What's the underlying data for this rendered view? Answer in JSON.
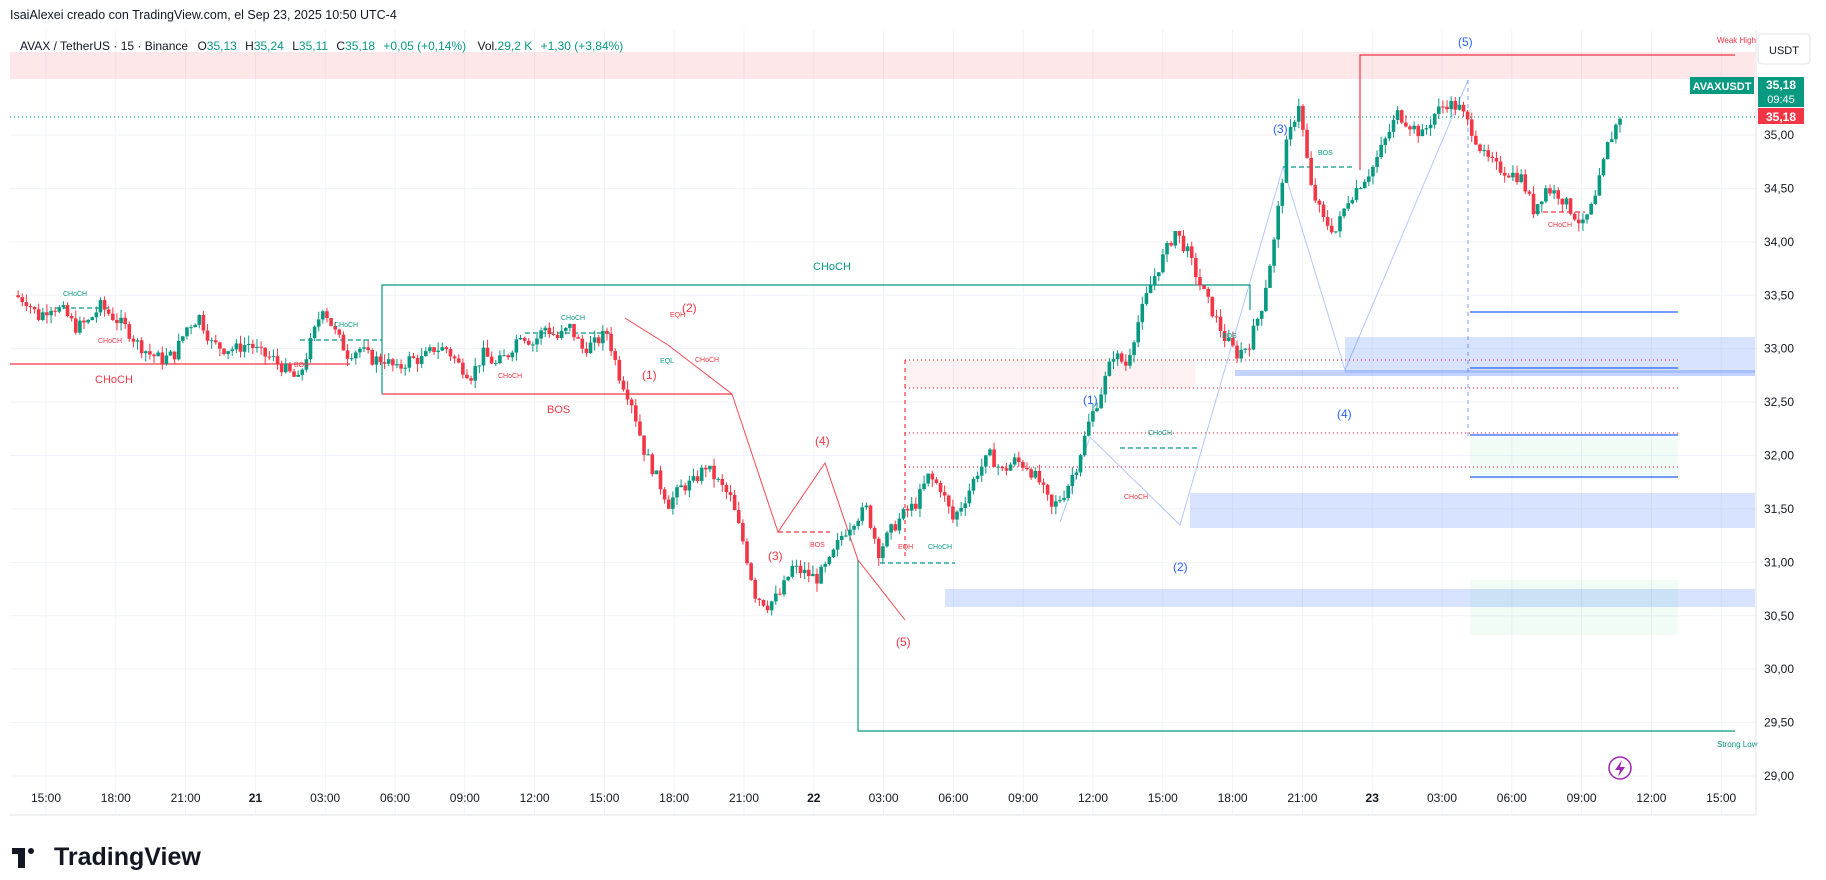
{
  "header": {
    "attribution": "IsaiAlexei creado con TradingView.com, el Sep 23, 2025 10:50 UTC-4"
  },
  "legend": {
    "symbol": "AVAX / TetherUS · 15 · Binance",
    "o_label": "O",
    "o_value": "35,13",
    "h_label": "H",
    "h_value": "35,24",
    "l_label": "L",
    "l_value": "35,11",
    "c_label": "C",
    "c_value": "35,18",
    "change": "+0,05 (+0,14%)",
    "vol_label": "Vol.",
    "vol_value": "29,2 K",
    "vol_change": "+1,30 (+3,84%)"
  },
  "price_scale": {
    "currency": "USDT",
    "symbol_badge": "AVAXUSDT",
    "last_price": "35,18",
    "countdown": "09:45",
    "last_price_red": "35,18"
  },
  "chart_data": {
    "type": "candlestick",
    "y_ticks": [
      "35,00",
      "34,50",
      "34,00",
      "33,50",
      "33,00",
      "32,50",
      "32,00",
      "31,50",
      "31,00",
      "30,50",
      "30,00",
      "29,50",
      "29,00"
    ],
    "x_ticks": [
      "15:00",
      "18:00",
      "21:00",
      "21",
      "03:00",
      "06:00",
      "09:00",
      "12:00",
      "15:00",
      "18:00",
      "21:00",
      "22",
      "03:00",
      "06:00",
      "09:00",
      "12:00",
      "15:00",
      "18:00",
      "21:00",
      "23",
      "03:00",
      "06:00",
      "09:00",
      "12:00",
      "15:00"
    ],
    "ylim": [
      29.0,
      35.6
    ],
    "key_prices": [
      {
        "label": "weak-high",
        "price": 35.37
      },
      {
        "label": "strong-low",
        "price": 29.4
      },
      {
        "label": "last",
        "price": 35.18
      }
    ],
    "annotations": {
      "weak_high": "Weak High",
      "strong_low": "Strong Low",
      "choch_main": "CHoCH",
      "choch_left": "CHoCH",
      "bos_left": "BOS",
      "bos_small": "BOS",
      "choch_small": "CHoCH",
      "eqh": "EQH",
      "eql": "EQL",
      "wave_red": [
        "(1)",
        "(2)",
        "(3)",
        "(4)",
        "(5)"
      ],
      "wave_blue": [
        "(1)",
        "(2)",
        "(3)",
        "(4)",
        "(5)"
      ]
    },
    "price_path": [
      [
        0,
        33.5
      ],
      [
        1,
        33.45
      ],
      [
        2,
        33.3
      ],
      [
        3,
        33.4
      ],
      [
        4,
        33.35
      ],
      [
        5,
        33.2
      ],
      [
        6,
        33.25
      ],
      [
        7,
        33.4
      ],
      [
        8,
        33.3
      ],
      [
        9,
        33.2
      ],
      [
        10,
        33.05
      ],
      [
        11,
        32.95
      ],
      [
        12,
        32.9
      ],
      [
        13,
        32.95
      ],
      [
        14,
        33.2
      ],
      [
        15,
        33.3
      ],
      [
        16,
        33.05
      ],
      [
        17,
        33.0
      ],
      [
        18,
        33.0
      ],
      [
        19,
        33.05
      ],
      [
        20,
        32.95
      ],
      [
        21,
        32.9
      ],
      [
        22,
        32.8
      ],
      [
        23,
        32.7
      ],
      [
        24,
        33.05
      ],
      [
        25,
        33.4
      ],
      [
        26,
        33.15
      ],
      [
        27,
        32.95
      ],
      [
        28,
        33.0
      ],
      [
        29,
        32.9
      ],
      [
        30,
        32.9
      ],
      [
        31,
        32.8
      ],
      [
        32,
        32.9
      ],
      [
        33,
        32.9
      ],
      [
        34,
        33.0
      ],
      [
        35,
        33.0
      ],
      [
        36,
        32.85
      ],
      [
        37,
        32.75
      ],
      [
        38,
        32.95
      ],
      [
        39,
        32.85
      ],
      [
        40,
        32.95
      ],
      [
        41,
        33.15
      ],
      [
        42,
        33.05
      ],
      [
        43,
        33.2
      ],
      [
        44,
        33.1
      ],
      [
        45,
        33.2
      ],
      [
        46,
        33.0
      ],
      [
        47,
        33.05
      ],
      [
        48,
        33.15
      ],
      [
        49,
        32.75
      ],
      [
        50,
        32.5
      ],
      [
        51,
        32.05
      ],
      [
        52,
        31.8
      ],
      [
        53,
        31.55
      ],
      [
        54,
        31.7
      ],
      [
        55,
        31.75
      ],
      [
        56,
        31.9
      ],
      [
        57,
        31.75
      ],
      [
        58,
        31.6
      ],
      [
        59,
        31.2
      ],
      [
        60,
        30.7
      ],
      [
        61,
        30.6
      ],
      [
        62,
        30.7
      ],
      [
        63,
        30.95
      ],
      [
        64,
        30.9
      ],
      [
        65,
        30.85
      ],
      [
        66,
        31.0
      ],
      [
        67,
        31.25
      ],
      [
        68,
        31.4
      ],
      [
        69,
        31.5
      ],
      [
        70,
        31.1
      ],
      [
        71,
        31.3
      ],
      [
        72,
        31.45
      ],
      [
        73,
        31.55
      ],
      [
        74,
        31.8
      ],
      [
        75,
        31.7
      ],
      [
        76,
        31.4
      ],
      [
        77,
        31.6
      ],
      [
        78,
        31.85
      ],
      [
        79,
        32.0
      ],
      [
        80,
        31.85
      ],
      [
        81,
        31.95
      ],
      [
        82,
        31.9
      ],
      [
        83,
        31.75
      ],
      [
        84,
        31.5
      ],
      [
        85,
        31.65
      ],
      [
        86,
        31.9
      ],
      [
        87,
        32.3
      ],
      [
        88,
        32.6
      ],
      [
        89,
        32.95
      ],
      [
        90,
        32.85
      ],
      [
        91,
        33.25
      ],
      [
        92,
        33.6
      ],
      [
        93,
        33.85
      ],
      [
        94,
        34.1
      ],
      [
        95,
        33.9
      ],
      [
        96,
        33.6
      ],
      [
        97,
        33.35
      ],
      [
        98,
        33.1
      ],
      [
        99,
        32.95
      ],
      [
        100,
        33.05
      ],
      [
        101,
        33.4
      ],
      [
        102,
        34.0
      ],
      [
        103,
        34.9
      ],
      [
        104,
        35.3
      ],
      [
        105,
        34.5
      ],
      [
        106,
        34.2
      ],
      [
        107,
        34.1
      ],
      [
        108,
        34.4
      ],
      [
        109,
        34.55
      ],
      [
        110,
        34.7
      ],
      [
        111,
        34.95
      ],
      [
        112,
        35.2
      ],
      [
        113,
        35.1
      ],
      [
        114,
        35.0
      ],
      [
        115,
        35.2
      ],
      [
        116,
        35.3
      ],
      [
        117,
        35.25
      ],
      [
        118,
        35.05
      ],
      [
        119,
        34.8
      ],
      [
        120,
        34.7
      ],
      [
        121,
        34.65
      ],
      [
        122,
        34.6
      ],
      [
        123,
        34.3
      ],
      [
        124,
        34.5
      ],
      [
        125,
        34.45
      ],
      [
        126,
        34.3
      ],
      [
        127,
        34.15
      ],
      [
        128,
        34.4
      ],
      [
        129,
        34.9
      ],
      [
        130,
        35.18
      ]
    ]
  }
}
